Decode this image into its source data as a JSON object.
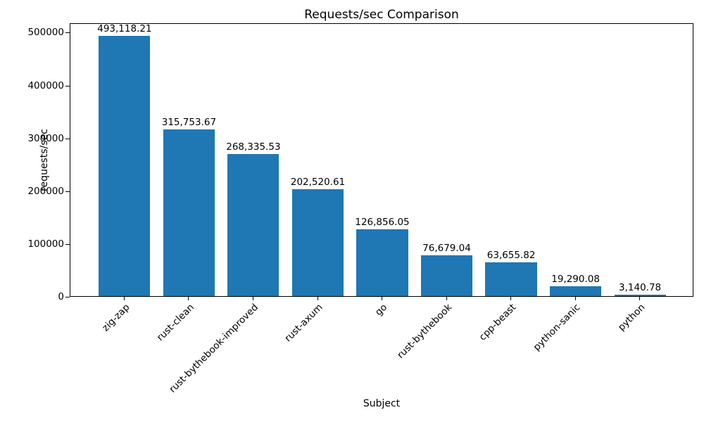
{
  "chart_data": {
    "type": "bar",
    "title": "Requests/sec Comparison",
    "xlabel": "Subject",
    "ylabel": "requests/sec",
    "categories": [
      "zig-zap",
      "rust-clean",
      "rust-bythebook-improved",
      "rust-axum",
      "go",
      "rust-bythebook",
      "cpp-beast",
      "python-sanic",
      "python"
    ],
    "values": [
      493118.21,
      315753.67,
      268335.53,
      202520.61,
      126856.05,
      76679.04,
      63655.82,
      19290.08,
      3140.78
    ],
    "value_labels": [
      "493,118.21",
      "315,753.67",
      "268,335.53",
      "202,520.61",
      "126,856.05",
      "76,679.04",
      "63,655.82",
      "19,290.08",
      "3,140.78"
    ],
    "bar_color": "#1f77b4",
    "axis_color": "#000000",
    "ylim": [
      0,
      517774
    ],
    "xlim": [
      -0.84,
      8.84
    ],
    "bar_width": 0.8,
    "yticks": [
      0,
      100000,
      200000,
      300000,
      400000,
      500000
    ],
    "ytick_labels": [
      "0",
      "100000",
      "200000",
      "300000",
      "400000",
      "500000"
    ],
    "xtick_rotation": 45,
    "grid": false,
    "legend": "none"
  }
}
